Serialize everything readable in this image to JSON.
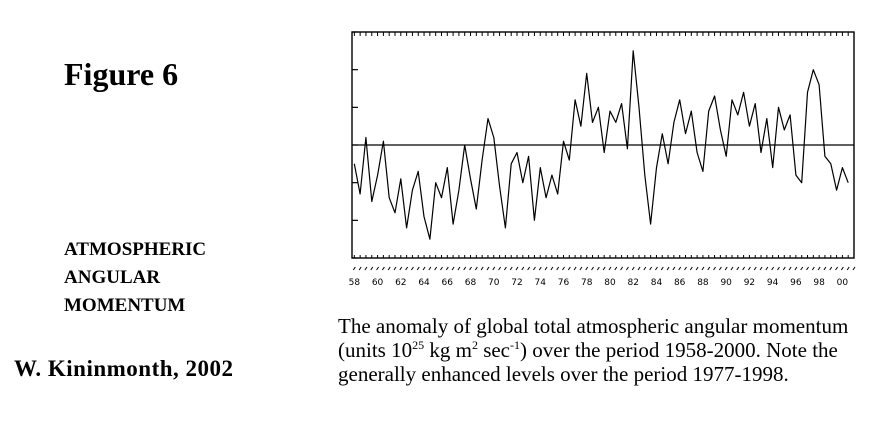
{
  "figure_label": "Figure 6",
  "subject_lines": [
    "ATMOSPHERIC",
    "ANGULAR",
    "MOMENTUM"
  ],
  "author": "W. Kininmonth, 2002",
  "caption": {
    "part1": "The anomaly of global total atmospheric angular momentum (units 10",
    "exp1": "25",
    "part2": " kg m",
    "exp2": "2",
    "part3": " sec",
    "exp3": "-1",
    "part4": ") over the period 1958-2000. Note the generally enhanced levels over the period 1977-1998."
  },
  "chart_data": {
    "type": "line",
    "title": "",
    "xlabel": "",
    "ylabel": "",
    "xlim": [
      1957.8,
      2001.0
    ],
    "ylim": [
      -3,
      3
    ],
    "x_tick_labels": [
      "58",
      "60",
      "62",
      "64",
      "66",
      "68",
      "70",
      "72",
      "74",
      "76",
      "78",
      "80",
      "82",
      "84",
      "86",
      "88",
      "90",
      "92",
      "94",
      "96",
      "98",
      "00"
    ],
    "x_tick_years": [
      1958,
      1960,
      1962,
      1964,
      1966,
      1968,
      1970,
      1972,
      1974,
      1976,
      1978,
      1980,
      1982,
      1984,
      1986,
      1988,
      1990,
      1992,
      1994,
      1996,
      1998,
      2000
    ],
    "y_ticks": [
      -3,
      -2,
      -1,
      0,
      1,
      2,
      3
    ],
    "zero_line": true,
    "grid": false,
    "series": [
      {
        "x": [
          1958.0,
          1958.5,
          1959.0,
          1959.5,
          1960.0,
          1960.5,
          1961.0,
          1961.5,
          1962.0,
          1962.5,
          1963.0,
          1963.5,
          1964.0,
          1964.5,
          1965.0,
          1965.5,
          1966.0,
          1966.5,
          1967.0,
          1967.5,
          1968.0,
          1968.5,
          1969.0,
          1969.5,
          1970.0,
          1970.5,
          1971.0,
          1971.5,
          1972.0,
          1972.5,
          1973.0,
          1973.5,
          1974.0,
          1974.5,
          1975.0,
          1975.5,
          1976.0,
          1976.5,
          1977.0,
          1977.5,
          1978.0,
          1978.5,
          1979.0,
          1979.5,
          1980.0,
          1980.5,
          1981.0,
          1981.5,
          1982.0,
          1982.5,
          1983.0,
          1983.5,
          1984.0,
          1984.5,
          1985.0,
          1985.5,
          1986.0,
          1986.5,
          1987.0,
          1987.5,
          1988.0,
          1988.5,
          1989.0,
          1989.5,
          1990.0,
          1990.5,
          1991.0,
          1991.5,
          1992.0,
          1992.5,
          1993.0,
          1993.5,
          1994.0,
          1994.5,
          1995.0,
          1995.5,
          1996.0,
          1996.5,
          1997.0,
          1997.5,
          1998.0,
          1998.5,
          1999.0,
          1999.5,
          2000.0,
          2000.5
        ],
        "values": [
          -0.5,
          -1.3,
          0.2,
          -1.5,
          -0.8,
          0.1,
          -1.4,
          -1.8,
          -0.9,
          -2.2,
          -1.2,
          -0.7,
          -1.9,
          -2.5,
          -1.0,
          -1.4,
          -0.6,
          -2.1,
          -1.2,
          0.0,
          -0.9,
          -1.7,
          -0.4,
          0.7,
          0.2,
          -1.1,
          -2.2,
          -0.5,
          -0.2,
          -1.0,
          -0.3,
          -2.0,
          -0.6,
          -1.4,
          -0.8,
          -1.3,
          0.1,
          -0.4,
          1.2,
          0.5,
          1.9,
          0.6,
          1.0,
          -0.2,
          0.9,
          0.6,
          1.1,
          -0.1,
          2.5,
          1.0,
          -0.8,
          -2.1,
          -0.6,
          0.3,
          -0.5,
          0.6,
          1.2,
          0.3,
          0.9,
          -0.2,
          -0.7,
          0.9,
          1.3,
          0.4,
          -0.3,
          1.2,
          0.8,
          1.4,
          0.5,
          1.1,
          -0.2,
          0.7,
          -0.6,
          1.0,
          0.4,
          0.8,
          -0.8,
          -1.0,
          1.4,
          2.0,
          1.6,
          -0.3,
          -0.5,
          -1.2,
          -0.6,
          -1.0
        ]
      }
    ]
  }
}
